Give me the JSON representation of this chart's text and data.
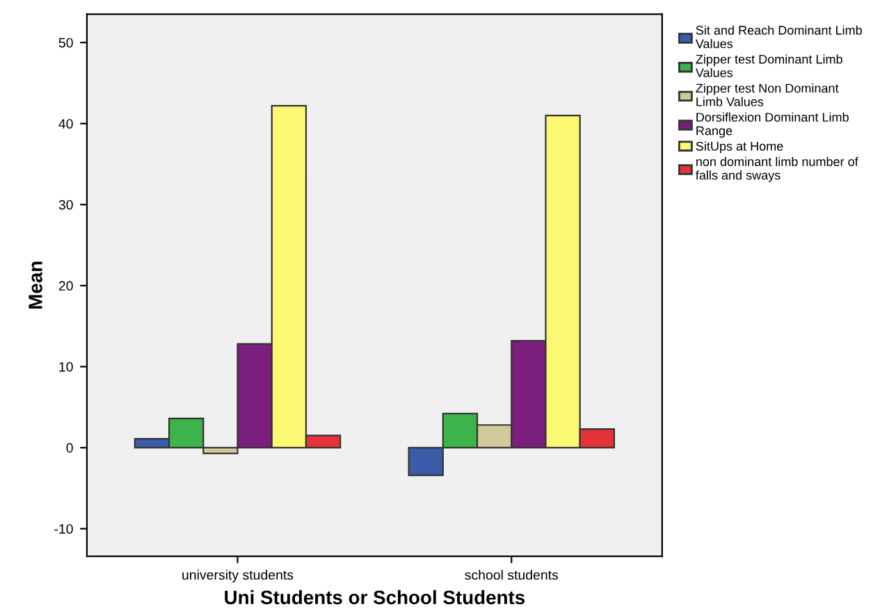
{
  "chart_data": {
    "type": "bar",
    "xlabel": "Uni Students or School Students",
    "ylabel": "Mean",
    "categories": [
      "university students",
      "school students"
    ],
    "series": [
      {
        "name": "Sit and Reach Dominant Limb Values",
        "color": "#3a5ba8",
        "values": [
          1.1,
          -3.4
        ]
      },
      {
        "name": "Zipper test Dominant Limb Values",
        "color": "#3cb44a",
        "values": [
          3.6,
          4.2
        ]
      },
      {
        "name": "Zipper test Non Dominant Limb Values",
        "color": "#d2c99a",
        "values": [
          -0.7,
          2.8
        ]
      },
      {
        "name": "Dorsiflexion Dominant Limb Range",
        "color": "#7b1f7e",
        "values": [
          12.8,
          13.2
        ]
      },
      {
        "name": "SitUps at Home",
        "color": "#fbf971",
        "values": [
          42.2,
          41.0
        ]
      },
      {
        "name": "non dominant limb number of falls and sways",
        "color": "#e5333a",
        "values": [
          1.5,
          2.3
        ]
      }
    ],
    "ylim": [
      -13.4,
      53.5
    ],
    "yticks": [
      {
        "value": -10,
        "label": "-10"
      },
      0,
      10,
      20,
      30,
      40,
      50
    ],
    "grid": false,
    "legend": "right"
  }
}
